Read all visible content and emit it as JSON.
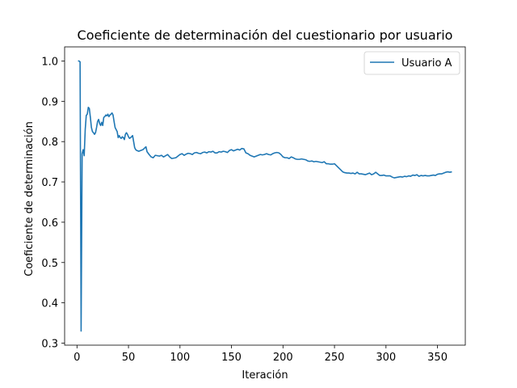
{
  "chart_data": {
    "type": "line",
    "title": "Coeficiente de determinación del cuestionario por usuario",
    "xlabel": "Iteración",
    "ylabel": "Coeficiente de determinación",
    "xlim": [
      -12,
      377
    ],
    "ylim": [
      0.295,
      1.035
    ],
    "xticks": [
      0,
      50,
      100,
      150,
      200,
      250,
      300,
      350
    ],
    "yticks": [
      0.3,
      0.4,
      0.5,
      0.6,
      0.7,
      0.8,
      0.9,
      1.0
    ],
    "ytick_labels": [
      "0.3",
      "0.4",
      "0.5",
      "0.6",
      "0.7",
      "0.8",
      "0.9",
      "1.0"
    ],
    "grid": false,
    "legend_position": "top-right",
    "series": [
      {
        "name": "Usuario A",
        "color": "#1f77b4",
        "points": [
          [
            1,
            1.0
          ],
          [
            2,
            1.0
          ],
          [
            3,
            0.998
          ],
          [
            4,
            0.33
          ],
          [
            5,
            0.77
          ],
          [
            6,
            0.78
          ],
          [
            7,
            0.765
          ],
          [
            8,
            0.83
          ],
          [
            9,
            0.865
          ],
          [
            10,
            0.868
          ],
          [
            11,
            0.885
          ],
          [
            12,
            0.882
          ],
          [
            13,
            0.86
          ],
          [
            14,
            0.835
          ],
          [
            15,
            0.825
          ],
          [
            16,
            0.822
          ],
          [
            17,
            0.818
          ],
          [
            18,
            0.822
          ],
          [
            19,
            0.835
          ],
          [
            20,
            0.85
          ],
          [
            21,
            0.855
          ],
          [
            22,
            0.845
          ],
          [
            23,
            0.84
          ],
          [
            24,
            0.848
          ],
          [
            25,
            0.84
          ],
          [
            26,
            0.86
          ],
          [
            27,
            0.862
          ],
          [
            28,
            0.866
          ],
          [
            29,
            0.864
          ],
          [
            30,
            0.868
          ],
          [
            31,
            0.862
          ],
          [
            32,
            0.866
          ],
          [
            33,
            0.868
          ],
          [
            34,
            0.871
          ],
          [
            35,
            0.866
          ],
          [
            36,
            0.85
          ],
          [
            37,
            0.835
          ],
          [
            38,
            0.83
          ],
          [
            39,
            0.825
          ],
          [
            40,
            0.81
          ],
          [
            41,
            0.815
          ],
          [
            42,
            0.81
          ],
          [
            43,
            0.808
          ],
          [
            44,
            0.812
          ],
          [
            45,
            0.81
          ],
          [
            46,
            0.805
          ],
          [
            47,
            0.818
          ],
          [
            48,
            0.822
          ],
          [
            49,
            0.818
          ],
          [
            50,
            0.812
          ],
          [
            51,
            0.808
          ],
          [
            52,
            0.81
          ],
          [
            53,
            0.812
          ],
          [
            54,
            0.815
          ],
          [
            55,
            0.8
          ],
          [
            56,
            0.785
          ],
          [
            57,
            0.78
          ],
          [
            58,
            0.778
          ],
          [
            59,
            0.777
          ],
          [
            60,
            0.776
          ],
          [
            62,
            0.778
          ],
          [
            64,
            0.78
          ],
          [
            66,
            0.785
          ],
          [
            67,
            0.787
          ],
          [
            68,
            0.775
          ],
          [
            70,
            0.768
          ],
          [
            72,
            0.762
          ],
          [
            74,
            0.76
          ],
          [
            76,
            0.766
          ],
          [
            78,
            0.765
          ],
          [
            80,
            0.764
          ],
          [
            82,
            0.766
          ],
          [
            84,
            0.762
          ],
          [
            86,
            0.765
          ],
          [
            88,
            0.768
          ],
          [
            90,
            0.762
          ],
          [
            92,
            0.758
          ],
          [
            94,
            0.759
          ],
          [
            96,
            0.76
          ],
          [
            98,
            0.764
          ],
          [
            100,
            0.768
          ],
          [
            102,
            0.77
          ],
          [
            104,
            0.766
          ],
          [
            106,
            0.769
          ],
          [
            108,
            0.771
          ],
          [
            110,
            0.77
          ],
          [
            112,
            0.768
          ],
          [
            114,
            0.772
          ],
          [
            116,
            0.773
          ],
          [
            118,
            0.771
          ],
          [
            120,
            0.77
          ],
          [
            122,
            0.773
          ],
          [
            124,
            0.774
          ],
          [
            126,
            0.772
          ],
          [
            128,
            0.775
          ],
          [
            130,
            0.774
          ],
          [
            132,
            0.776
          ],
          [
            134,
            0.772
          ],
          [
            136,
            0.772
          ],
          [
            138,
            0.775
          ],
          [
            140,
            0.774
          ],
          [
            142,
            0.776
          ],
          [
            144,
            0.775
          ],
          [
            146,
            0.773
          ],
          [
            148,
            0.778
          ],
          [
            150,
            0.78
          ],
          [
            152,
            0.777
          ],
          [
            154,
            0.779
          ],
          [
            156,
            0.781
          ],
          [
            158,
            0.779
          ],
          [
            160,
            0.783
          ],
          [
            162,
            0.782
          ],
          [
            164,
            0.772
          ],
          [
            166,
            0.77
          ],
          [
            168,
            0.766
          ],
          [
            170,
            0.764
          ],
          [
            172,
            0.762
          ],
          [
            174,
            0.764
          ],
          [
            176,
            0.766
          ],
          [
            178,
            0.768
          ],
          [
            180,
            0.767
          ],
          [
            182,
            0.768
          ],
          [
            184,
            0.77
          ],
          [
            186,
            0.768
          ],
          [
            188,
            0.767
          ],
          [
            190,
            0.77
          ],
          [
            192,
            0.772
          ],
          [
            194,
            0.773
          ],
          [
            196,
            0.772
          ],
          [
            198,
            0.768
          ],
          [
            200,
            0.762
          ],
          [
            202,
            0.76
          ],
          [
            204,
            0.76
          ],
          [
            206,
            0.758
          ],
          [
            208,
            0.762
          ],
          [
            210,
            0.76
          ],
          [
            212,
            0.757
          ],
          [
            214,
            0.756
          ],
          [
            216,
            0.756
          ],
          [
            218,
            0.757
          ],
          [
            220,
            0.756
          ],
          [
            222,
            0.755
          ],
          [
            224,
            0.752
          ],
          [
            226,
            0.751
          ],
          [
            228,
            0.752
          ],
          [
            230,
            0.75
          ],
          [
            232,
            0.751
          ],
          [
            234,
            0.75
          ],
          [
            236,
            0.749
          ],
          [
            238,
            0.748
          ],
          [
            240,
            0.75
          ],
          [
            242,
            0.745
          ],
          [
            244,
            0.745
          ],
          [
            246,
            0.744
          ],
          [
            248,
            0.744
          ],
          [
            250,
            0.745
          ],
          [
            252,
            0.74
          ],
          [
            254,
            0.735
          ],
          [
            256,
            0.73
          ],
          [
            258,
            0.725
          ],
          [
            260,
            0.723
          ],
          [
            262,
            0.722
          ],
          [
            264,
            0.722
          ],
          [
            266,
            0.721
          ],
          [
            268,
            0.722
          ],
          [
            270,
            0.72
          ],
          [
            272,
            0.724
          ],
          [
            274,
            0.72
          ],
          [
            276,
            0.72
          ],
          [
            278,
            0.719
          ],
          [
            280,
            0.718
          ],
          [
            282,
            0.72
          ],
          [
            284,
            0.722
          ],
          [
            286,
            0.718
          ],
          [
            288,
            0.72
          ],
          [
            290,
            0.724
          ],
          [
            292,
            0.72
          ],
          [
            294,
            0.716
          ],
          [
            296,
            0.716
          ],
          [
            298,
            0.717
          ],
          [
            300,
            0.715
          ],
          [
            302,
            0.715
          ],
          [
            304,
            0.715
          ],
          [
            306,
            0.712
          ],
          [
            308,
            0.71
          ],
          [
            310,
            0.711
          ],
          [
            312,
            0.712
          ],
          [
            314,
            0.713
          ],
          [
            316,
            0.712
          ],
          [
            318,
            0.714
          ],
          [
            320,
            0.713
          ],
          [
            322,
            0.715
          ],
          [
            324,
            0.714
          ],
          [
            326,
            0.717
          ],
          [
            328,
            0.716
          ],
          [
            330,
            0.718
          ],
          [
            332,
            0.714
          ],
          [
            334,
            0.716
          ],
          [
            336,
            0.715
          ],
          [
            338,
            0.716
          ],
          [
            340,
            0.715
          ],
          [
            342,
            0.715
          ],
          [
            344,
            0.716
          ],
          [
            346,
            0.717
          ],
          [
            348,
            0.716
          ],
          [
            350,
            0.719
          ],
          [
            352,
            0.72
          ],
          [
            354,
            0.72
          ],
          [
            356,
            0.722
          ],
          [
            358,
            0.724
          ],
          [
            360,
            0.725
          ],
          [
            362,
            0.724
          ],
          [
            364,
            0.725
          ]
        ]
      }
    ]
  }
}
